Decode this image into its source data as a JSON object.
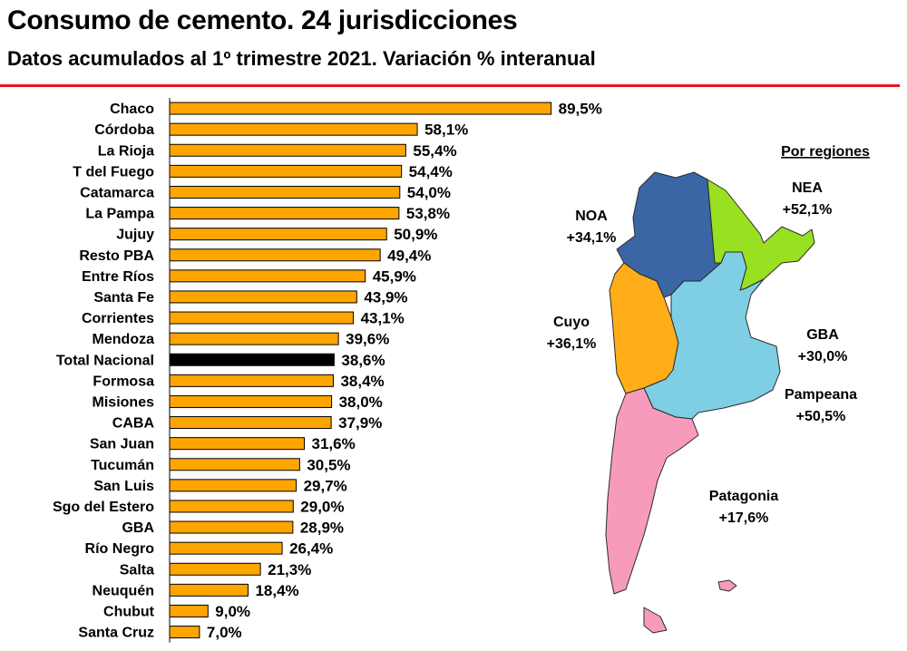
{
  "header": {
    "title": "Consumo de cemento. 24 jurisdicciones",
    "subtitle": "Datos acumulados al 1º trimestre 2021. Variación % interanual"
  },
  "colors": {
    "bar": "#ffa500",
    "bar_highlight": "#000000",
    "rule": "#e8141b",
    "noa": "#3a66a6",
    "nea": "#99e021",
    "cuyo": "#ffae1a",
    "pampeana": "#7ecfe4",
    "patagonia": "#f79bbd"
  },
  "chart_data": {
    "type": "bar",
    "orientation": "horizontal",
    "categories": [
      "Chaco",
      "Córdoba",
      "La Rioja",
      "T del Fuego",
      "Catamarca",
      "La Pampa",
      "Jujuy",
      "Resto PBA",
      "Entre Ríos",
      "Santa Fe",
      "Corrientes",
      "Mendoza",
      "Total Nacional",
      "Formosa",
      "Misiones",
      "CABA",
      "San Juan",
      "Tucumán",
      "San Luis",
      "Sgo del Estero",
      "GBA",
      "Río Negro",
      "Salta",
      "Neuquén",
      "Chubut",
      "Santa Cruz"
    ],
    "values": [
      89.5,
      58.1,
      55.4,
      54.4,
      54.0,
      53.8,
      50.9,
      49.4,
      45.9,
      43.9,
      43.1,
      39.6,
      38.6,
      38.4,
      38.0,
      37.9,
      31.6,
      30.5,
      29.7,
      29.0,
      28.9,
      26.4,
      21.3,
      18.4,
      9.0,
      7.0
    ],
    "value_labels": [
      "89,5%",
      "58,1%",
      "55,4%",
      "54,4%",
      "54,0%",
      "53,8%",
      "50,9%",
      "49,4%",
      "45,9%",
      "43,9%",
      "43,1%",
      "39,6%",
      "38,6%",
      "38,4%",
      "38,0%",
      "37,9%",
      "31,6%",
      "30,5%",
      "29,7%",
      "29,0%",
      "28,9%",
      "26,4%",
      "21,3%",
      "18,4%",
      "9,0%",
      "7,0%"
    ],
    "highlight": "Total Nacional",
    "xlim": [
      0,
      100
    ],
    "grid": false,
    "legend": false
  },
  "map": {
    "heading": "Por regiones",
    "regions": [
      {
        "name": "NOA",
        "value": "+34,1%"
      },
      {
        "name": "NEA",
        "value": "+52,1%"
      },
      {
        "name": "Cuyo",
        "value": "+36,1%"
      },
      {
        "name": "GBA",
        "value": "+30,0%"
      },
      {
        "name": "Pampeana",
        "value": "+50,5%"
      },
      {
        "name": "Patagonia",
        "value": "+17,6%"
      }
    ]
  }
}
